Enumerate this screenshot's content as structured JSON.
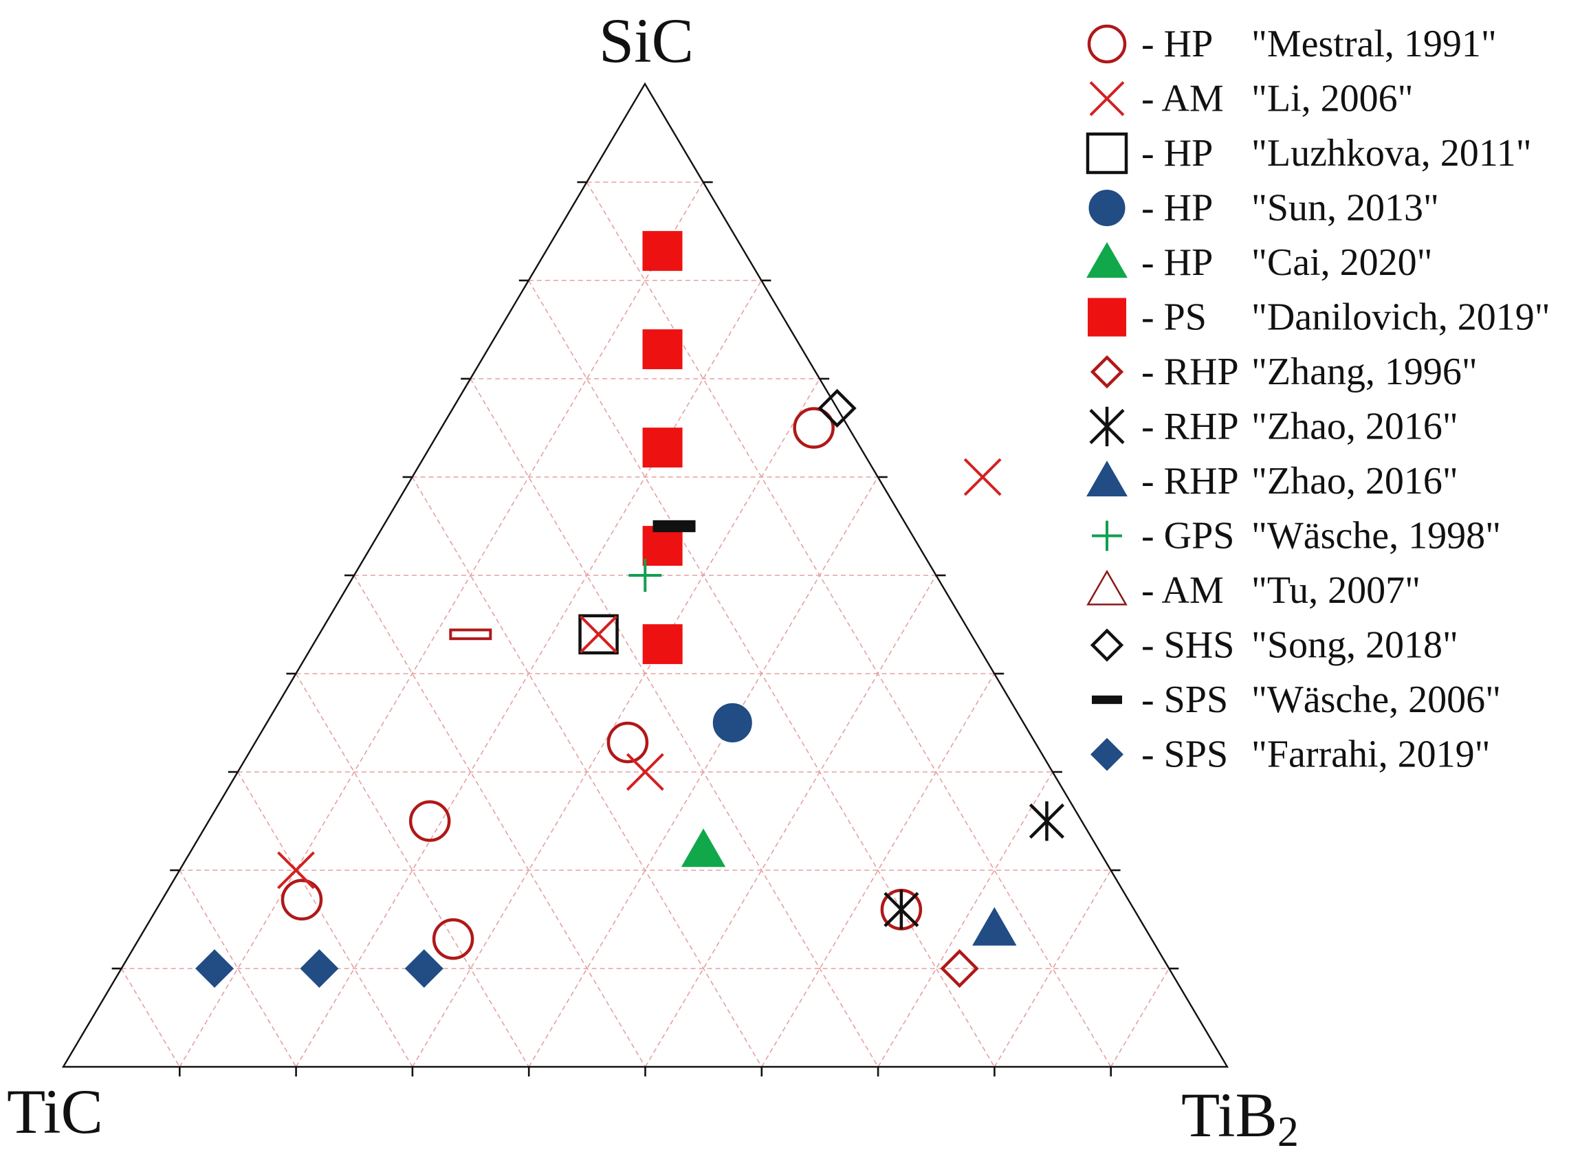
{
  "chart_data": {
    "type": "ternary-scatter",
    "vertices": {
      "top": {
        "label": "SiC"
      },
      "left": {
        "label": "TiC"
      },
      "right": {
        "label": "TiB",
        "subscript": "2"
      }
    },
    "grid": true,
    "grid_step": 0.1,
    "legend_position": "right",
    "series": [
      {
        "method": "HP",
        "ref": "\"Mestral, 1991\"",
        "marker": "circle-open",
        "color": "#b01818",
        "points": [
          {
            "SiC": 0.65,
            "TiB2": 0.32
          },
          {
            "SiC": 0.33,
            "TiB2": 0.32
          },
          {
            "SiC": 0.25,
            "TiB2": 0.19
          },
          {
            "SiC": 0.17,
            "TiB2": 0.12
          },
          {
            "SiC": 0.13,
            "TiB2": 0.27
          },
          {
            "SiC": 0.16,
            "TiB2": 0.64
          }
        ]
      },
      {
        "method": "AM",
        "ref": "\"Li, 2006\"",
        "marker": "x",
        "color": "#d42020",
        "points": [
          {
            "SiC": 0.6,
            "TiB2": 0.49
          },
          {
            "SiC": 0.44,
            "TiB2": 0.24
          },
          {
            "SiC": 0.3,
            "TiB2": 0.35
          },
          {
            "SiC": 0.2,
            "TiB2": 0.1
          }
        ]
      },
      {
        "method": "HP",
        "ref": "\"Luzhkova, 2011\"",
        "marker": "square-open",
        "color": "#111111",
        "points": [
          {
            "SiC": 0.44,
            "TiB2": 0.24
          }
        ]
      },
      {
        "method": "HP",
        "ref": "\"Sun, 2013\"",
        "marker": "circle-filled",
        "color": "#214c84",
        "points": [
          {
            "SiC": 0.35,
            "TiB2": 0.4
          }
        ]
      },
      {
        "method": "HP",
        "ref": "\"Cai, 2020\"",
        "marker": "triangle-filled",
        "color": "#10a84a",
        "points": [
          {
            "SiC": 0.22,
            "TiB2": 0.44
          }
        ]
      },
      {
        "method": "PS",
        "ref": "\"Danilovich, 2019\"",
        "marker": "square-filled",
        "color": "#ee1111",
        "points": [
          {
            "SiC": 0.83,
            "TiB2": 0.1
          },
          {
            "SiC": 0.73,
            "TiB2": 0.15
          },
          {
            "SiC": 0.63,
            "TiB2": 0.2
          },
          {
            "SiC": 0.53,
            "TiB2": 0.25
          },
          {
            "SiC": 0.43,
            "TiB2": 0.3
          }
        ]
      },
      {
        "method": "RHP",
        "ref": "\"Zhang, 1996\"",
        "marker": "diamond-open",
        "color": "#b01818",
        "points": [
          {
            "SiC": 0.1,
            "TiB2": 0.72
          }
        ]
      },
      {
        "method": "RHP",
        "ref": "\"Zhao, 2016\"",
        "marker": "asterisk",
        "color": "#111111",
        "points": [
          {
            "SiC": 0.25,
            "TiB2": 0.72
          },
          {
            "SiC": 0.16,
            "TiB2": 0.64
          }
        ]
      },
      {
        "method": "RHP",
        "ref": "\"Zhao, 2016\"",
        "marker": "triangle-filled",
        "color": "#214c84",
        "points": [
          {
            "SiC": 0.14,
            "TiB2": 0.73
          }
        ]
      },
      {
        "method": "GPS",
        "ref": "\"Wäsche, 1998\"",
        "marker": "plus",
        "color": "#10a050",
        "points": [
          {
            "SiC": 0.5,
            "TiB2": 0.25
          }
        ]
      },
      {
        "method": "AM",
        "ref": "\"Tu, 2007\"",
        "marker": "triangle-open",
        "color": "#8a1818",
        "points": []
      },
      {
        "method": "SHS",
        "ref": "\"Song, 2018\"",
        "marker": "diamond-open",
        "color": "#111111",
        "points": [
          {
            "SiC": 0.67,
            "TiB2": 0.33
          }
        ]
      },
      {
        "method": "SPS",
        "ref": "\"Wäsche, 2006\"",
        "marker": "dash",
        "color": "#111111",
        "points": [
          {
            "SiC": 0.55,
            "TiB2": 0.25
          }
        ]
      },
      {
        "method": "SPS",
        "ref": "\"Farrahi, 2019\"",
        "marker": "diamond-filled",
        "color": "#214c84",
        "points": [
          {
            "SiC": 0.1,
            "TiB2": 0.08
          },
          {
            "SiC": 0.1,
            "TiB2": 0.17
          },
          {
            "SiC": 0.1,
            "TiB2": 0.26
          }
        ]
      },
      {
        "method": "",
        "ref": "",
        "marker": "dash-open",
        "color": "#b01818",
        "points": [
          {
            "SiC": 0.44,
            "TiB2": 0.13
          }
        ]
      }
    ]
  }
}
